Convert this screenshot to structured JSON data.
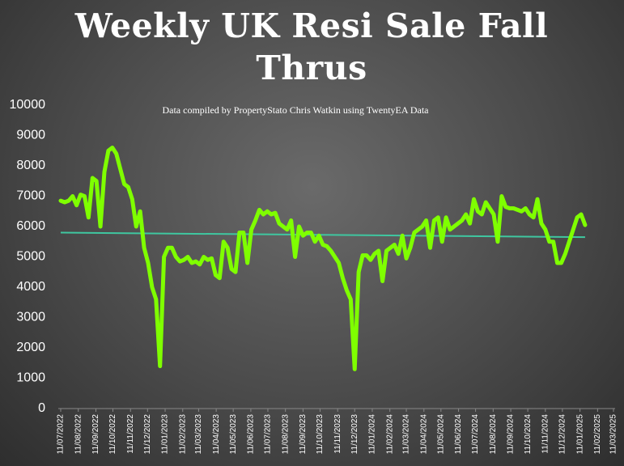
{
  "chart_data": {
    "type": "line",
    "title": "Weekly UK Resi Sale Fall Thrus",
    "subtitle": "Data compiled by PropertyStato Chris Watkin using TwentyEA Data",
    "x": [
      "2022-07-11",
      "2022-07-18",
      "2022-07-25",
      "2022-08-01",
      "2022-08-08",
      "2022-08-15",
      "2022-08-22",
      "2022-08-29",
      "2022-09-05",
      "2022-09-12",
      "2022-09-19",
      "2022-09-26",
      "2022-10-03",
      "2022-10-10",
      "2022-10-17",
      "2022-10-24",
      "2022-10-31",
      "2022-11-07",
      "2022-11-14",
      "2022-11-21",
      "2022-11-28",
      "2022-12-05",
      "2022-12-12",
      "2022-12-19",
      "2022-12-26",
      "2023-01-02",
      "2023-01-09",
      "2023-01-16",
      "2023-01-23",
      "2023-01-30",
      "2023-02-06",
      "2023-02-13",
      "2023-02-20",
      "2023-02-27",
      "2023-03-06",
      "2023-03-13",
      "2023-03-20",
      "2023-03-27",
      "2023-04-03",
      "2023-04-10",
      "2023-04-17",
      "2023-04-24",
      "2023-05-01",
      "2023-05-08",
      "2023-05-15",
      "2023-05-22",
      "2023-05-29",
      "2023-06-05",
      "2023-06-12",
      "2023-06-19",
      "2023-06-26",
      "2023-07-03",
      "2023-07-10",
      "2023-07-17",
      "2023-07-24",
      "2023-07-31",
      "2023-08-07",
      "2023-08-14",
      "2023-08-21",
      "2023-08-28",
      "2023-09-04",
      "2023-09-11",
      "2023-09-18",
      "2023-09-25",
      "2023-10-02",
      "2023-10-09",
      "2023-10-16",
      "2023-10-23",
      "2023-10-30",
      "2023-11-06",
      "2023-11-13",
      "2023-11-20",
      "2023-11-27",
      "2023-12-04",
      "2023-12-11",
      "2023-12-18",
      "2023-12-25",
      "2024-01-01",
      "2024-01-08",
      "2024-01-15",
      "2024-01-22",
      "2024-01-29",
      "2024-02-05",
      "2024-02-12",
      "2024-02-19",
      "2024-02-26",
      "2024-03-04",
      "2024-03-11",
      "2024-03-18",
      "2024-03-25",
      "2024-04-01",
      "2024-04-08",
      "2024-04-15",
      "2024-04-22",
      "2024-04-29",
      "2024-05-06",
      "2024-05-13",
      "2024-05-20",
      "2024-05-27",
      "2024-06-03",
      "2024-06-10",
      "2024-06-17",
      "2024-06-24",
      "2024-07-01",
      "2024-07-08",
      "2024-07-15",
      "2024-07-22",
      "2024-07-29",
      "2024-08-05",
      "2024-08-12",
      "2024-08-19",
      "2024-08-26",
      "2024-09-02",
      "2024-09-09",
      "2024-09-16",
      "2024-09-23",
      "2024-09-30",
      "2024-10-07",
      "2024-10-14",
      "2024-10-21",
      "2024-10-28",
      "2024-11-04",
      "2024-11-11",
      "2024-11-18",
      "2024-11-25",
      "2024-12-02",
      "2024-12-09",
      "2024-12-16",
      "2024-12-23",
      "2024-12-30",
      "2025-01-06",
      "2025-01-13",
      "2025-01-20"
    ],
    "series": [
      {
        "color": "#7fff00",
        "values": [
          6850,
          6800,
          6850,
          7000,
          6700,
          7050,
          7000,
          6300,
          7600,
          7500,
          6000,
          7800,
          8500,
          8600,
          8400,
          7900,
          7400,
          7300,
          6900,
          6000,
          6500,
          5300,
          4800,
          4000,
          3600,
          1400,
          5000,
          5300,
          5300,
          5000,
          4850,
          4900,
          5000,
          4800,
          4850,
          4750,
          5000,
          4900,
          4950,
          4400,
          4300,
          5500,
          5300,
          4600,
          4500,
          5800,
          5800,
          4800,
          5900,
          6200,
          6550,
          6400,
          6500,
          6400,
          6450,
          6100,
          6000,
          5900,
          6200,
          5000,
          6000,
          5700,
          5800,
          5800,
          5500,
          5700,
          5400,
          5350,
          5200,
          5000,
          4800,
          4300,
          3900,
          3600,
          1300,
          4500,
          5050,
          5050,
          4900,
          5100,
          5200,
          4200,
          5200,
          5300,
          5400,
          5100,
          5700,
          4950,
          5300,
          5800,
          5900,
          6000,
          6200,
          5300,
          6200,
          6300,
          5500,
          6300,
          5900,
          6000,
          6100,
          6200,
          6400,
          6100,
          6900,
          6500,
          6400,
          6800,
          6600,
          6400,
          5500,
          7000,
          6650,
          6600,
          6600,
          6550,
          6500,
          6600,
          6400,
          6300,
          6900,
          6100,
          5900,
          5500,
          5500,
          4800,
          4800,
          5100,
          5500,
          5900,
          6300,
          6400,
          6050
        ]
      }
    ],
    "trendline": {
      "color": "#3fc7a0",
      "x": [
        "2022-07-11",
        "2025-01-20"
      ],
      "values": [
        5800,
        5650
      ]
    },
    "xlim": [
      "2022-07-11",
      "2025-03-11"
    ],
    "xticks": [
      {
        "value": "2022-07-11",
        "label": "11/07/2022"
      },
      {
        "value": "2022-08-11",
        "label": "11/08/2022"
      },
      {
        "value": "2022-09-11",
        "label": "11/09/2022"
      },
      {
        "value": "2022-10-11",
        "label": "11/10/2022"
      },
      {
        "value": "2022-11-11",
        "label": "11/11/2022"
      },
      {
        "value": "2022-12-11",
        "label": "11/12/2022"
      },
      {
        "value": "2023-01-11",
        "label": "11/01/2023"
      },
      {
        "value": "2023-02-11",
        "label": "11/02/2023"
      },
      {
        "value": "2023-03-11",
        "label": "11/03/2023"
      },
      {
        "value": "2023-04-11",
        "label": "11/04/2023"
      },
      {
        "value": "2023-05-11",
        "label": "11/05/2023"
      },
      {
        "value": "2023-06-11",
        "label": "11/06/2023"
      },
      {
        "value": "2023-07-11",
        "label": "11/07/2023"
      },
      {
        "value": "2023-08-11",
        "label": "11/08/2023"
      },
      {
        "value": "2023-09-11",
        "label": "11/09/2023"
      },
      {
        "value": "2023-10-11",
        "label": "11/10/2023"
      },
      {
        "value": "2023-11-11",
        "label": "11/11/2023"
      },
      {
        "value": "2023-12-11",
        "label": "11/12/2023"
      },
      {
        "value": "2024-01-11",
        "label": "11/01/2024"
      },
      {
        "value": "2024-02-11",
        "label": "11/02/2024"
      },
      {
        "value": "2024-03-11",
        "label": "11/03/2024"
      },
      {
        "value": "2024-04-11",
        "label": "11/04/2024"
      },
      {
        "value": "2024-05-11",
        "label": "11/05/2024"
      },
      {
        "value": "2024-06-11",
        "label": "11/06/2024"
      },
      {
        "value": "2024-07-11",
        "label": "11/07/2024"
      },
      {
        "value": "2024-08-11",
        "label": "11/08/2024"
      },
      {
        "value": "2024-09-11",
        "label": "11/09/2024"
      },
      {
        "value": "2024-10-11",
        "label": "11/10/2024"
      },
      {
        "value": "2024-11-11",
        "label": "11/11/2024"
      },
      {
        "value": "2024-12-11",
        "label": "11/12/2024"
      },
      {
        "value": "2025-01-11",
        "label": "11/01/2025"
      },
      {
        "value": "2025-02-11",
        "label": "11/02/2025"
      },
      {
        "value": "2025-03-11",
        "label": "11/03/2025"
      }
    ],
    "ylim": [
      0,
      10000
    ],
    "yticks": [
      0,
      1000,
      2000,
      3000,
      4000,
      5000,
      6000,
      7000,
      8000,
      9000,
      10000
    ],
    "grid": false
  }
}
